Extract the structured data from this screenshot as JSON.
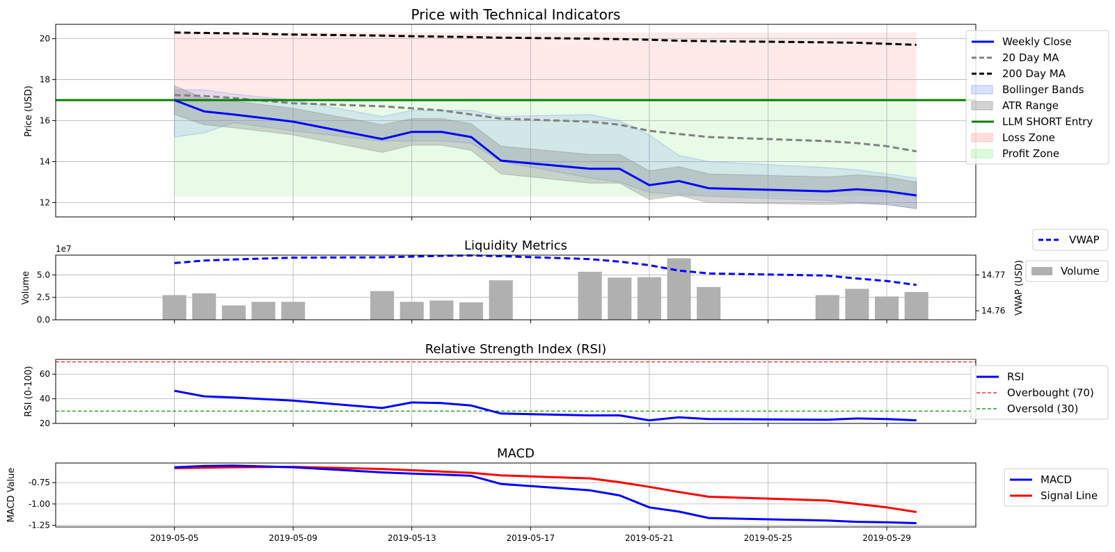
{
  "chart_data": [
    {
      "type": "line",
      "title": "Price with Technical Indicators",
      "xlabel": "",
      "ylabel": "Price (USD)",
      "xlim": [
        "2019-05-01",
        "2019-06-01"
      ],
      "ylim": [
        11.3,
        20.7
      ],
      "y_ticks": [
        12,
        14,
        16,
        18,
        20
      ],
      "grid": true,
      "legend_position": "right",
      "x": [
        "2019-05-05",
        "2019-05-06",
        "2019-05-07",
        "2019-05-09",
        "2019-05-12",
        "2019-05-13",
        "2019-05-14",
        "2019-05-15",
        "2019-05-16",
        "2019-05-19",
        "2019-05-20",
        "2019-05-21",
        "2019-05-22",
        "2019-05-23",
        "2019-05-27",
        "2019-05-28",
        "2019-05-29",
        "2019-05-30"
      ],
      "series": [
        {
          "name": "Weekly Close",
          "color": "#0000ff",
          "style": "solid",
          "values": [
            17.0,
            16.45,
            16.3,
            15.95,
            15.1,
            15.45,
            15.45,
            15.2,
            14.05,
            13.65,
            13.65,
            12.85,
            13.05,
            12.7,
            12.55,
            12.65,
            12.55,
            12.35
          ]
        },
        {
          "name": "20 Day MA",
          "color": "#808080",
          "style": "dashed",
          "values": [
            17.25,
            17.2,
            17.1,
            16.85,
            16.7,
            16.6,
            16.5,
            16.3,
            16.1,
            15.95,
            15.8,
            15.5,
            15.35,
            15.2,
            15.0,
            14.9,
            14.75,
            14.5
          ]
        },
        {
          "name": "200 Day MA",
          "color": "#000000",
          "style": "dashed",
          "values": [
            20.3,
            20.28,
            20.26,
            20.2,
            20.15,
            20.12,
            20.1,
            20.08,
            20.05,
            20.0,
            19.98,
            19.95,
            19.9,
            19.88,
            19.82,
            19.8,
            19.75,
            19.7
          ]
        }
      ],
      "bands": [
        {
          "name": "Bollinger Bands",
          "color": "#6e8ef0",
          "upper": [
            17.5,
            17.5,
            17.3,
            17.0,
            16.2,
            16.5,
            16.5,
            16.5,
            16.2,
            16.3,
            16.0,
            15.3,
            14.3,
            14.0,
            13.7,
            13.6,
            13.4,
            13.2
          ],
          "lower": [
            15.2,
            15.4,
            15.9,
            15.5,
            15.0,
            15.0,
            15.0,
            14.9,
            14.0,
            13.2,
            13.0,
            12.5,
            12.4,
            12.3,
            12.1,
            12.0,
            11.9,
            11.7
          ]
        },
        {
          "name": "ATR Range",
          "color": "#808080",
          "upper": [
            17.7,
            17.1,
            16.95,
            16.6,
            15.8,
            16.1,
            16.1,
            15.85,
            14.75,
            14.35,
            14.35,
            13.55,
            13.75,
            13.4,
            13.25,
            13.35,
            13.25,
            13.0
          ],
          "lower": [
            16.3,
            15.8,
            15.65,
            15.3,
            14.45,
            14.8,
            14.8,
            14.55,
            13.4,
            12.95,
            12.95,
            12.15,
            12.35,
            12.0,
            11.9,
            11.95,
            11.9,
            11.7
          ]
        }
      ],
      "entry": {
        "name": "LLM SHORT Entry",
        "value": 17.0,
        "color": "#008000"
      },
      "zones": [
        {
          "name": "Loss Zone",
          "from": 17.0,
          "to": 20.3,
          "color": "#ff9999"
        },
        {
          "name": "Profit Zone",
          "from": 12.3,
          "to": 17.0,
          "color": "#90ee90"
        }
      ]
    },
    {
      "type": "bar",
      "title": "Liquidity Metrics",
      "ylabel": "Volume",
      "y2label": "VWAP (USD)",
      "offset_text": "1e7",
      "ylim": [
        0,
        7.2
      ],
      "y_ticks": [
        "0.0",
        "2.5",
        "5.0"
      ],
      "y2lim": [
        14.7575,
        14.7755
      ],
      "y2_ticks": [
        "14.76",
        "14.77"
      ],
      "grid": true,
      "legend_position": "right",
      "series": [
        {
          "name": "Volume",
          "color": "#b0b0b0",
          "unit": "1e7",
          "x": [
            "2019-05-05",
            "2019-05-06",
            "2019-05-07",
            "2019-05-08",
            "2019-05-09",
            "2019-05-12",
            "2019-05-13",
            "2019-05-14",
            "2019-05-15",
            "2019-05-16",
            "2019-05-19",
            "2019-05-20",
            "2019-05-21",
            "2019-05-22",
            "2019-05-23",
            "2019-05-27",
            "2019-05-28",
            "2019-05-29",
            "2019-05-30"
          ],
          "values": [
            2.75,
            2.95,
            1.6,
            2.0,
            2.0,
            3.2,
            2.0,
            2.15,
            1.95,
            4.4,
            5.35,
            4.7,
            4.75,
            6.85,
            3.65,
            2.75,
            3.45,
            2.6,
            3.1
          ]
        },
        {
          "name": "VWAP",
          "color": "#0000ff",
          "style": "dashed",
          "x": [
            "2019-05-05",
            "2019-05-06",
            "2019-05-07",
            "2019-05-09",
            "2019-05-12",
            "2019-05-13",
            "2019-05-14",
            "2019-05-15",
            "2019-05-16",
            "2019-05-19",
            "2019-05-20",
            "2019-05-21",
            "2019-05-22",
            "2019-05-23",
            "2019-05-27",
            "2019-05-28",
            "2019-05-29",
            "2019-05-30"
          ],
          "values": [
            14.7733,
            14.774,
            14.7743,
            14.7748,
            14.7749,
            14.7751,
            14.7753,
            14.7754,
            14.7752,
            14.7744,
            14.7737,
            14.7727,
            14.7712,
            14.7704,
            14.7698,
            14.769,
            14.7683,
            14.7672
          ]
        }
      ]
    },
    {
      "type": "line",
      "title": "Relative Strength Index (RSI)",
      "ylabel": "RSI (0-100)",
      "ylim": [
        20,
        72
      ],
      "y_ticks": [
        20,
        40,
        60
      ],
      "grid": true,
      "legend_position": "right",
      "x": [
        "2019-05-05",
        "2019-05-06",
        "2019-05-07",
        "2019-05-09",
        "2019-05-12",
        "2019-05-13",
        "2019-05-14",
        "2019-05-15",
        "2019-05-16",
        "2019-05-19",
        "2019-05-20",
        "2019-05-21",
        "2019-05-22",
        "2019-05-23",
        "2019-05-27",
        "2019-05-28",
        "2019-05-29",
        "2019-05-30"
      ],
      "series": [
        {
          "name": "RSI",
          "color": "#0000ff",
          "style": "solid",
          "values": [
            46.5,
            42.0,
            41.0,
            38.5,
            32.5,
            37.0,
            36.5,
            34.5,
            28.0,
            26.5,
            26.5,
            22.5,
            25.0,
            23.5,
            23.0,
            24.0,
            23.5,
            22.5
          ]
        }
      ],
      "reference_lines": [
        {
          "name": "Overbought (70)",
          "value": 70,
          "color": "#ff0000"
        },
        {
          "name": "Oversold (30)",
          "value": 30,
          "color": "#008000"
        }
      ]
    },
    {
      "type": "line",
      "title": "MACD",
      "xlabel": "",
      "ylabel": "MACD Value",
      "ylim": [
        -1.27,
        -0.52
      ],
      "y_ticks": [
        "-0.75",
        "-1.00",
        "-1.25"
      ],
      "grid": true,
      "legend_position": "right",
      "x_ticks": [
        "2019-05-05",
        "2019-05-09",
        "2019-05-13",
        "2019-05-17",
        "2019-05-21",
        "2019-05-25",
        "2019-05-29"
      ],
      "x": [
        "2019-05-05",
        "2019-05-06",
        "2019-05-07",
        "2019-05-09",
        "2019-05-12",
        "2019-05-13",
        "2019-05-14",
        "2019-05-15",
        "2019-05-16",
        "2019-05-19",
        "2019-05-20",
        "2019-05-21",
        "2019-05-22",
        "2019-05-23",
        "2019-05-27",
        "2019-05-28",
        "2019-05-29",
        "2019-05-30"
      ],
      "series": [
        {
          "name": "MACD",
          "color": "#0000ff",
          "style": "solid",
          "values": [
            -0.57,
            -0.555,
            -0.55,
            -0.57,
            -0.63,
            -0.645,
            -0.655,
            -0.67,
            -0.765,
            -0.84,
            -0.9,
            -1.04,
            -1.09,
            -1.165,
            -1.195,
            -1.21,
            -1.215,
            -1.225
          ]
        },
        {
          "name": "Signal Line",
          "color": "#ff0000",
          "style": "solid",
          "values": [
            -0.58,
            -0.575,
            -0.57,
            -0.565,
            -0.59,
            -0.605,
            -0.62,
            -0.635,
            -0.665,
            -0.7,
            -0.745,
            -0.8,
            -0.86,
            -0.915,
            -0.96,
            -1.0,
            -1.04,
            -1.095
          ]
        }
      ]
    }
  ]
}
